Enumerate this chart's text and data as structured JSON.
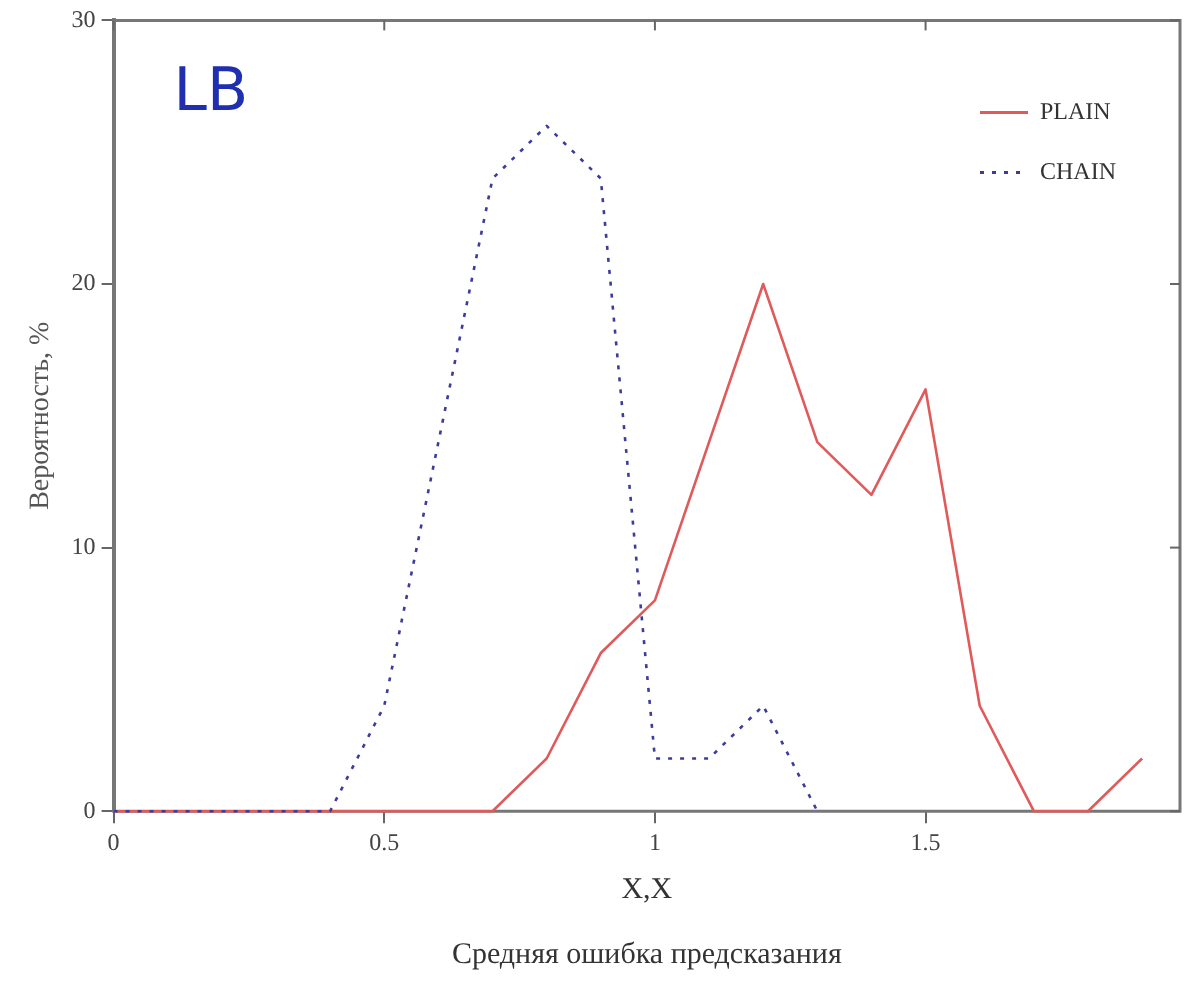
{
  "chart_data": {
    "type": "line",
    "xlabel": "X,X",
    "ylabel": "Вероятность, %",
    "annotations": [
      "LB",
      "Средняя ошибка предсказания"
    ],
    "xlim": [
      0,
      1.97
    ],
    "xticks": [
      0,
      0.5,
      1,
      1.5
    ],
    "ylim": [
      0,
      30
    ],
    "yticks": [
      0,
      10,
      20,
      30
    ],
    "grid": false,
    "legend": "top right",
    "marker": "none",
    "series": [
      {
        "name": "PLAIN",
        "color": "#e05a5a",
        "line_style": "solid",
        "x": [
          0,
          0.1,
          0.2,
          0.3,
          0.4,
          0.5,
          0.6,
          0.7,
          0.8,
          0.9,
          1.0,
          1.1,
          1.2,
          1.3,
          1.4,
          1.5,
          1.6,
          1.7,
          1.8,
          1.9
        ],
        "values": [
          0,
          0,
          0,
          0,
          0,
          0,
          0,
          0,
          2,
          6,
          8,
          14,
          20,
          14,
          12,
          16,
          4,
          0,
          0,
          2
        ]
      },
      {
        "name": "CHAIN",
        "color": "#3c3c9c",
        "line_style": "dotted",
        "x": [
          0,
          0.1,
          0.2,
          0.3,
          0.4,
          0.5,
          0.6,
          0.7,
          0.8,
          0.9,
          1.0,
          1.1,
          1.2,
          1.3
        ],
        "values": [
          0,
          0,
          0,
          0,
          0,
          4,
          14,
          24,
          26,
          24,
          2,
          2,
          4,
          0
        ]
      }
    ]
  }
}
